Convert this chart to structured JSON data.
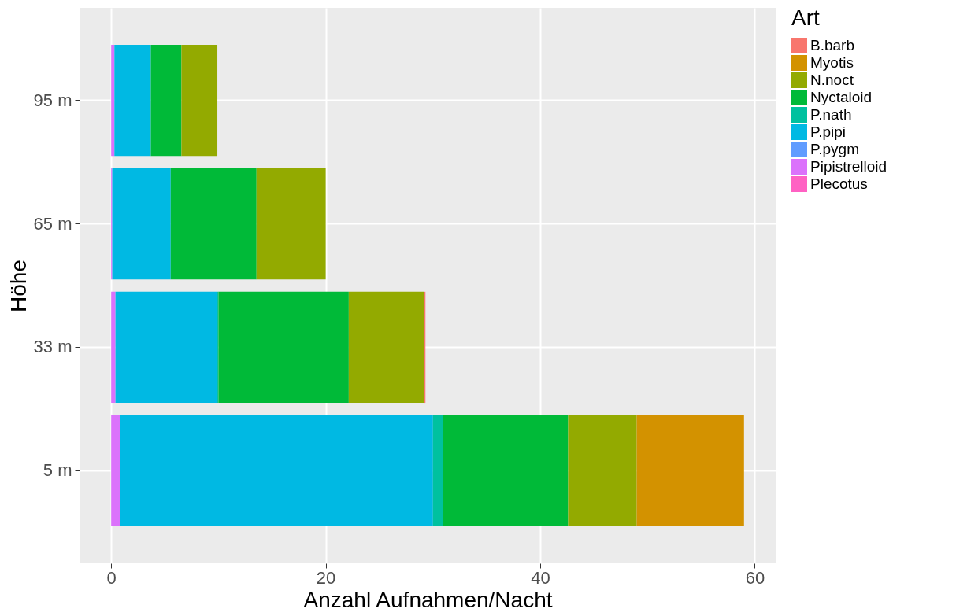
{
  "chart_data": {
    "type": "bar",
    "orientation": "horizontal",
    "stacked": true,
    "xlabel": "Anzahl Aufnahmen/Nacht",
    "ylabel": "Höhe",
    "legend_title": "Art",
    "legend": "right",
    "grid": true,
    "categories": [
      "95 m",
      "65 m",
      "33 m",
      "5 m"
    ],
    "xlim": [
      -2.95,
      61.95
    ],
    "xticks": [
      0,
      20,
      40,
      60
    ],
    "series": [
      {
        "name": "Plecotus",
        "color": "#ff61c3",
        "values": [
          0,
          0,
          0,
          0
        ]
      },
      {
        "name": "Pipistrelloid",
        "color": "#db72fb",
        "values": [
          0.3,
          0.1,
          0.4,
          0.8
        ]
      },
      {
        "name": "P.pygm",
        "color": "#619cff",
        "values": [
          0,
          0,
          0,
          0
        ]
      },
      {
        "name": "P.pipi",
        "color": "#00b9e3",
        "values": [
          3.4,
          5.45,
          9.5,
          29.2
        ]
      },
      {
        "name": "P.nath",
        "color": "#00c19f",
        "values": [
          0,
          0,
          0.1,
          0.9
        ]
      },
      {
        "name": "Nyctaloid",
        "color": "#00ba38",
        "values": [
          2.85,
          8.0,
          12.15,
          11.7
        ]
      },
      {
        "name": "N.noct",
        "color": "#93aa00",
        "values": [
          3.35,
          6.45,
          7.0,
          6.4
        ]
      },
      {
        "name": "Myotis",
        "color": "#d39200",
        "values": [
          0,
          0,
          0,
          10.0
        ]
      },
      {
        "name": "B.barb",
        "color": "#f8766d",
        "values": [
          0,
          0,
          0.15,
          0
        ]
      }
    ]
  }
}
